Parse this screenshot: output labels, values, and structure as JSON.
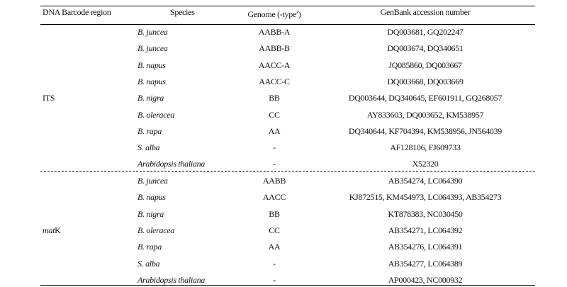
{
  "header": {
    "region": "DNA Barcode region",
    "species": "Species",
    "genome": "Genome (-type",
    "genome_sup": "z",
    "genome_close": ")",
    "accession": "GenBank accession number"
  },
  "groups": [
    {
      "region": "ITS",
      "region_italic_part": "",
      "rows": [
        {
          "species": "B. juncea",
          "genome": "AABB-A",
          "accession": "DQ003681, GQ202247"
        },
        {
          "species": "B. juncea",
          "genome": "AABB-B",
          "accession": "DQ003674, DQ340651"
        },
        {
          "species": "B. napus",
          "genome": "AACC-A",
          "accession": "JQ085860, DQ003667"
        },
        {
          "species": "B. napus",
          "genome": "AACC-C",
          "accession": "DQ003668, DQ003669"
        },
        {
          "species": "B. nigra",
          "genome": "BB",
          "accession": "DQ003644, DQ340645, EF601911, GQ268057"
        },
        {
          "species": "B. oleracea",
          "genome": "CC",
          "accession": "AY833603, DQ003652, KM538957"
        },
        {
          "species": "B. rapa",
          "genome": "AA",
          "accession": "DQ340644, KF704394, KM538956, JN564039"
        },
        {
          "species": "S. alba",
          "genome": "-",
          "accession": "AF128106, FJ609733"
        },
        {
          "species": "Arabidopsis thaliana",
          "genome": "-",
          "accession": "X52320"
        }
      ]
    },
    {
      "region": "K",
      "region_italic_part": "mat",
      "rows": [
        {
          "species": "B. juncea",
          "genome": "AABB",
          "accession": "AB354274, LC064390"
        },
        {
          "species": "B. napus",
          "genome": "AACC",
          "accession": "KJ872515, KM454973, LC064393, AB354273"
        },
        {
          "species": "B. nigra",
          "genome": "BB",
          "accession": "KT878383, NC030450"
        },
        {
          "species": "B. oleracea",
          "genome": "CC",
          "accession": "AB354271, LC064392"
        },
        {
          "species": "B. rapa",
          "genome": "AA",
          "accession": "AB354276, LC064391"
        },
        {
          "species": "S. alba",
          "genome": "-",
          "accession": "AB354277, LC064389"
        },
        {
          "species": "Arabidopsis thaliana",
          "genome": "-",
          "accession": "AP000423, NC000932"
        }
      ]
    }
  ]
}
